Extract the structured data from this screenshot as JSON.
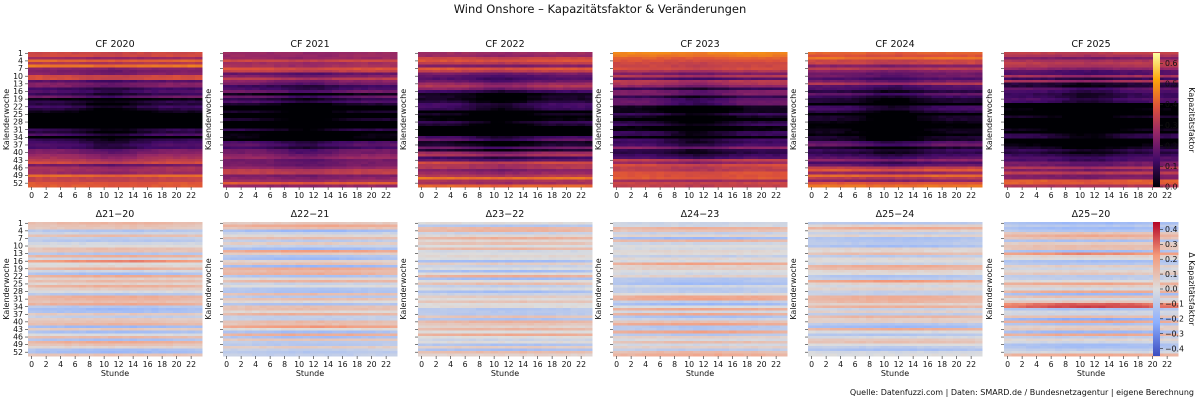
{
  "title": "Wind Onshore – Kapazitätsfaktor & Veränderungen",
  "footer": "Quelle: Datenfuzzi.com | Daten: SMARD.de / Bundesnetzagentur | eigene Berechnung",
  "chart_data": {
    "type": "heatmap",
    "x_label": "Stunde",
    "y_label": "Kalenderwoche",
    "x_ticks": [
      "0",
      "2",
      "4",
      "6",
      "8",
      "10",
      "12",
      "14",
      "16",
      "18",
      "20",
      "22"
    ],
    "y_ticks": [
      "1",
      "4",
      "7",
      "10",
      "13",
      "16",
      "19",
      "22",
      "25",
      "28",
      "31",
      "34",
      "37",
      "40",
      "43",
      "46",
      "49",
      "52"
    ],
    "rows_shown": 53,
    "cols_shown": 24,
    "colors": {
      "inferno_stops": [
        "#000004",
        "#420a68",
        "#932667",
        "#dd513a",
        "#fca50a",
        "#fcffa4"
      ],
      "coolwarm_stops": [
        "#3b4cc0",
        "#8db0fe",
        "#dddddd",
        "#f49a7b",
        "#b40426"
      ]
    },
    "colorbars": [
      {
        "label": "Kapazitätsfaktor",
        "range": [
          0.0,
          0.65
        ],
        "cmap": "inferno",
        "ticks": [
          "0.0",
          "0.1",
          "0.2",
          "0.3",
          "0.4",
          "0.5",
          "0.6"
        ]
      },
      {
        "label": "Δ Kapazitätsfaktor",
        "range": [
          -0.45,
          0.45
        ],
        "cmap": "coolwarm",
        "ticks": [
          "0.4",
          "0.3",
          "0.2",
          "0.1",
          "0.0",
          "−0.1",
          "−0.2",
          "−0.3",
          "−0.4"
        ]
      }
    ],
    "panels_top": [
      {
        "title": "CF 2020",
        "seed": 20,
        "offset": 0.03
      },
      {
        "title": "CF 2021",
        "seed": 21,
        "offset": -0.02
      },
      {
        "title": "CF 2022",
        "seed": 22,
        "offset": 0.02
      },
      {
        "title": "CF 2023",
        "seed": 23,
        "offset": 0.03
      },
      {
        "title": "CF 2024",
        "seed": 24,
        "offset": 0.01
      },
      {
        "title": "CF 2025",
        "seed": 25,
        "offset": -0.03
      }
    ],
    "panels_bottom": [
      {
        "title": "Δ21−20",
        "seed": 121
      },
      {
        "title": "Δ22−21",
        "seed": 122
      },
      {
        "title": "Δ23−22",
        "seed": 123
      },
      {
        "title": "Δ24−23",
        "seed": 124
      },
      {
        "title": "Δ25−24",
        "seed": 125
      },
      {
        "title": "Δ25−20",
        "seed": 126
      }
    ]
  }
}
